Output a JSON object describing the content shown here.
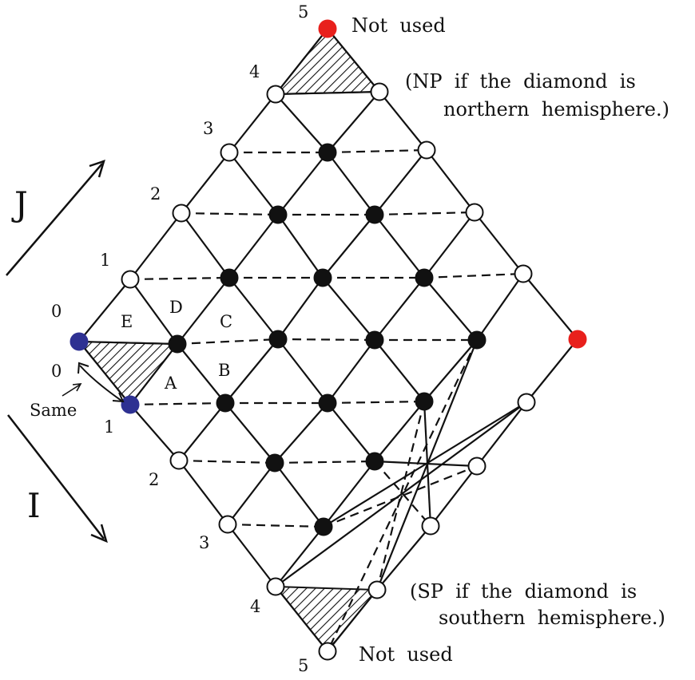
{
  "axes": {
    "j_label": "J",
    "i_label": "I"
  },
  "j_indices": [
    "1",
    "2",
    "3",
    "4",
    "5"
  ],
  "i_indices": [
    "1",
    "2",
    "3",
    "4",
    "5"
  ],
  "left_indices": {
    "upper_zero": "0",
    "lower_zero": "0"
  },
  "cell_labels": {
    "a": "A",
    "b": "B",
    "c": "C",
    "d": "D",
    "e": "E"
  },
  "same_label": "Same",
  "annotations": {
    "not_used_top": "Not  used",
    "not_used_bottom": "Not  used",
    "np_line1": "(NP  if  the  diamond  is",
    "np_line2": "northern  hemisphere.)",
    "sp_line1": "(SP  if  the  diamond  is",
    "sp_line2": "southern  hemisphere.)"
  },
  "colors": {
    "line": "#111111",
    "grid_node": "#111111",
    "boundary_node": "#ffffff",
    "shared_node": "#2e3192",
    "pole_node": "#e8201c"
  }
}
